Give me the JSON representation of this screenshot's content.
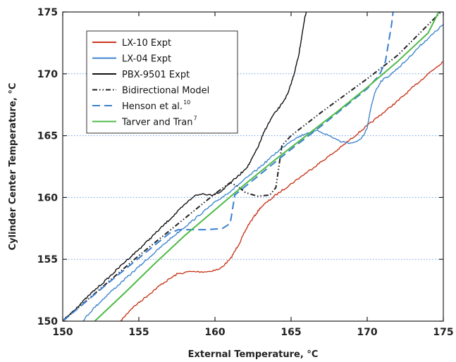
{
  "chart_data": {
    "type": "line",
    "title": "",
    "xlabel": "External Temperature, °C",
    "ylabel": "Cylinder Center Temperature, °C",
    "xlim": [
      150,
      175
    ],
    "ylim": [
      150,
      175
    ],
    "xticks": [
      "150",
      "155",
      "160",
      "165",
      "170",
      "175"
    ],
    "yticks": [
      "150",
      "155",
      "160",
      "165",
      "170",
      "175"
    ],
    "grid": "horizontal-dotted",
    "legend_position": "top-left",
    "series": [
      {
        "name": "LX-10 Expt",
        "label": "LX-10 Expt",
        "sup": "",
        "color": "#c8381e",
        "dash": "solid",
        "jitter": true,
        "points": [
          [
            153.8,
            150.0
          ],
          [
            154.5,
            151.0
          ],
          [
            155.5,
            152.0
          ],
          [
            156.5,
            153.0
          ],
          [
            157.5,
            153.8
          ],
          [
            158.3,
            154.0
          ],
          [
            159.5,
            154.0
          ],
          [
            160.3,
            154.2
          ],
          [
            161.0,
            155.0
          ],
          [
            161.6,
            156.3
          ],
          [
            162.2,
            157.8
          ],
          [
            163.0,
            159.2
          ],
          [
            164.0,
            160.2
          ],
          [
            165.0,
            161.1
          ],
          [
            166.0,
            162.0
          ],
          [
            167.0,
            162.9
          ],
          [
            168.0,
            163.8
          ],
          [
            169.0,
            164.8
          ],
          [
            170.0,
            165.8
          ],
          [
            171.0,
            166.8
          ],
          [
            172.0,
            167.8
          ],
          [
            173.0,
            168.9
          ],
          [
            174.0,
            170.0
          ],
          [
            175.0,
            171.0
          ]
        ]
      },
      {
        "name": "LX-04 Expt",
        "label": "LX-04 Expt",
        "sup": "",
        "color": "#3f86cc",
        "dash": "solid",
        "jitter": true,
        "points": [
          [
            151.3,
            150.0
          ],
          [
            152.0,
            151.0
          ],
          [
            153.0,
            152.2
          ],
          [
            154.0,
            153.3
          ],
          [
            155.0,
            154.4
          ],
          [
            156.0,
            155.5
          ],
          [
            157.0,
            156.6
          ],
          [
            158.0,
            157.6
          ],
          [
            159.0,
            158.6
          ],
          [
            160.0,
            159.6
          ],
          [
            161.0,
            160.5
          ],
          [
            162.0,
            161.5
          ],
          [
            163.0,
            162.5
          ],
          [
            164.0,
            163.6
          ],
          [
            165.0,
            164.6
          ],
          [
            166.0,
            165.2
          ],
          [
            166.8,
            165.4
          ],
          [
            167.5,
            165.0
          ],
          [
            168.3,
            164.5
          ],
          [
            169.0,
            164.4
          ],
          [
            169.6,
            164.7
          ],
          [
            170.0,
            165.6
          ],
          [
            170.2,
            167.0
          ],
          [
            170.5,
            168.5
          ],
          [
            170.9,
            169.4
          ],
          [
            171.5,
            169.9
          ],
          [
            172.5,
            171.0
          ],
          [
            173.5,
            172.3
          ],
          [
            174.3,
            173.2
          ],
          [
            175.0,
            174.0
          ]
        ]
      },
      {
        "name": "PBX-9501 Expt",
        "label": "PBX-9501 Expt",
        "sup": "",
        "color": "#111111",
        "dash": "solid",
        "jitter": true,
        "points": [
          [
            150.0,
            150.0
          ],
          [
            151.0,
            151.2
          ],
          [
            152.0,
            152.4
          ],
          [
            153.0,
            153.5
          ],
          [
            154.0,
            154.7
          ],
          [
            155.0,
            155.8
          ],
          [
            156.0,
            157.0
          ],
          [
            157.0,
            158.2
          ],
          [
            158.0,
            159.4
          ],
          [
            158.6,
            160.1
          ],
          [
            159.2,
            160.3
          ],
          [
            159.8,
            160.2
          ],
          [
            160.4,
            160.5
          ],
          [
            161.0,
            161.2
          ],
          [
            161.6,
            161.8
          ],
          [
            162.2,
            162.6
          ],
          [
            162.8,
            164.0
          ],
          [
            163.3,
            165.5
          ],
          [
            163.8,
            166.6
          ],
          [
            164.3,
            167.4
          ],
          [
            164.8,
            168.4
          ],
          [
            165.2,
            170.0
          ],
          [
            165.5,
            171.5
          ],
          [
            165.7,
            173.0
          ],
          [
            165.9,
            174.5
          ],
          [
            166.0,
            175.0
          ]
        ]
      },
      {
        "name": "Bidirectional Model",
        "label": "Bidirectional Model",
        "sup": "",
        "color": "#222222",
        "dash": "dashdotdot",
        "jitter": false,
        "points": [
          [
            150.0,
            150.0
          ],
          [
            155.0,
            155.3
          ],
          [
            158.0,
            158.3
          ],
          [
            160.0,
            160.3
          ],
          [
            161.0,
            161.2
          ],
          [
            161.5,
            160.9
          ],
          [
            162.0,
            160.4
          ],
          [
            162.8,
            160.1
          ],
          [
            163.6,
            160.2
          ],
          [
            164.0,
            160.8
          ],
          [
            164.2,
            162.5
          ],
          [
            164.4,
            164.2
          ],
          [
            165.0,
            165.0
          ],
          [
            167.0,
            166.9
          ],
          [
            170.0,
            169.6
          ],
          [
            172.0,
            171.5
          ],
          [
            175.0,
            175.2
          ]
        ]
      },
      {
        "name": "Henson et al.",
        "label": "Henson et al.",
        "sup": "10",
        "color": "#3a7fd0",
        "dash": "dashed",
        "jitter": false,
        "points": [
          [
            150.0,
            150.0
          ],
          [
            153.0,
            153.1
          ],
          [
            155.0,
            155.1
          ],
          [
            157.0,
            157.1
          ],
          [
            157.6,
            157.4
          ],
          [
            158.5,
            157.4
          ],
          [
            159.5,
            157.4
          ],
          [
            160.5,
            157.5
          ],
          [
            161.0,
            157.9
          ],
          [
            161.15,
            159.0
          ],
          [
            161.3,
            160.2
          ],
          [
            161.8,
            160.7
          ],
          [
            163.0,
            161.9
          ],
          [
            165.0,
            163.9
          ],
          [
            167.0,
            165.8
          ],
          [
            168.5,
            167.3
          ],
          [
            170.0,
            168.8
          ],
          [
            170.8,
            169.9
          ],
          [
            171.2,
            171.0
          ],
          [
            171.4,
            172.5
          ],
          [
            171.6,
            174.0
          ],
          [
            171.7,
            175.0
          ]
        ]
      },
      {
        "name": "Tarver and Tran",
        "label": "Tarver and Tran",
        "sup": "7",
        "color": "#4dba45",
        "dash": "solid",
        "jitter": false,
        "points": [
          [
            152.1,
            150.0
          ],
          [
            154.0,
            152.2
          ],
          [
            156.0,
            154.6
          ],
          [
            158.0,
            156.9
          ],
          [
            160.0,
            159.0
          ],
          [
            162.0,
            161.1
          ],
          [
            164.0,
            163.1
          ],
          [
            166.0,
            165.0
          ],
          [
            168.0,
            166.9
          ],
          [
            170.0,
            168.9
          ],
          [
            172.0,
            171.0
          ],
          [
            174.0,
            173.3
          ],
          [
            174.7,
            175.0
          ]
        ]
      }
    ]
  }
}
